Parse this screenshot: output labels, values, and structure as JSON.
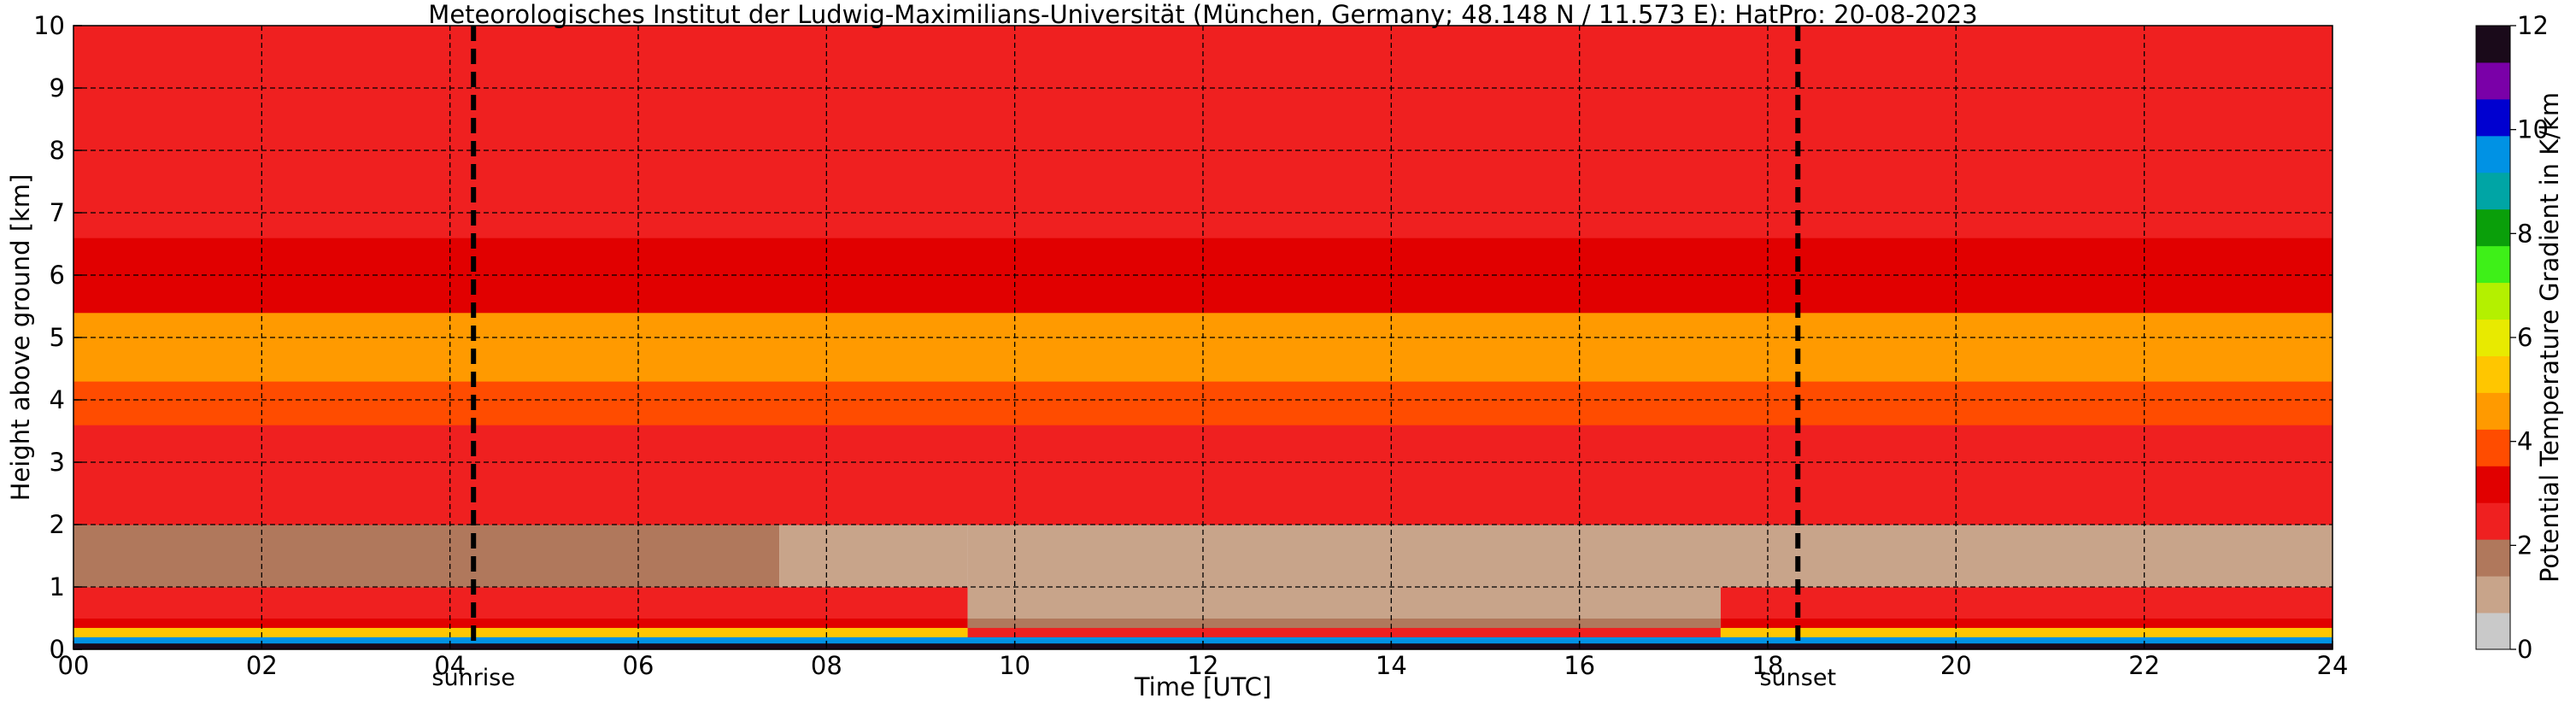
{
  "chart_data": {
    "type": "heatmap",
    "title": "Meteorologisches Institut der Ludwig-Maximilians-Universität (München, Germany; 48.148 N / 11.573 E):    HatPro: 20-08-2023",
    "xlabel": "Time [UTC]",
    "ylabel": "Height above ground [km]",
    "xlim": [
      0,
      24
    ],
    "ylim": [
      0,
      10
    ],
    "x_ticks": [
      "00",
      "02",
      "04",
      "06",
      "08",
      "10",
      "12",
      "14",
      "16",
      "18",
      "20",
      "22",
      "24"
    ],
    "y_ticks": [
      "0",
      "1",
      "2",
      "3",
      "4",
      "5",
      "6",
      "7",
      "8",
      "9",
      "10"
    ],
    "grid": true,
    "colorbar": {
      "label": "Potential Temperature Gradient in K/km",
      "range": [
        0,
        12
      ],
      "ticks": [
        "0",
        "2",
        "4",
        "6",
        "8",
        "10",
        "12"
      ],
      "colors": [
        "#c9c9c9",
        "#c8a48a",
        "#b0785c",
        "#ef2020",
        "#e10000",
        "#ff4c00",
        "#ff9a00",
        "#ffc600",
        "#e8ea00",
        "#b4f000",
        "#3ef018",
        "#0a9f0a",
        "#00a5a5",
        "#0092e4",
        "#0000d0",
        "#7a00a8",
        "#1a0a1a"
      ]
    },
    "events": [
      {
        "label": "sunrise",
        "time": 4.25
      },
      {
        "label": "sunset",
        "time": 18.32
      }
    ],
    "layers": [
      {
        "h_from": 0.0,
        "h_to": 0.1,
        "value": 12,
        "time_from": 0,
        "time_to": 24
      },
      {
        "h_from": 0.1,
        "h_to": 0.2,
        "value": 9.5,
        "time_from": 0,
        "time_to": 24
      },
      {
        "h_from": 0.2,
        "h_to": 0.35,
        "value": 5,
        "time_from": 0,
        "time_to": 9.5
      },
      {
        "h_from": 0.2,
        "h_to": 0.35,
        "value": 2.5,
        "time_from": 9.5,
        "time_to": 17.5
      },
      {
        "h_from": 0.2,
        "h_to": 0.35,
        "value": 5,
        "time_from": 17.5,
        "time_to": 24
      },
      {
        "h_from": 0.35,
        "h_to": 0.5,
        "value": 3.5,
        "time_from": 0,
        "time_to": 9.5
      },
      {
        "h_from": 0.35,
        "h_to": 0.5,
        "value": 1.5,
        "time_from": 9.5,
        "time_to": 17.5
      },
      {
        "h_from": 0.35,
        "h_to": 0.5,
        "value": 3.5,
        "time_from": 17.5,
        "time_to": 24
      },
      {
        "h_from": 0.5,
        "h_to": 1.0,
        "value": 2.6,
        "time_from": 0,
        "time_to": 9.5
      },
      {
        "h_from": 0.5,
        "h_to": 1.0,
        "value": 1.2,
        "time_from": 9.5,
        "time_to": 17.5
      },
      {
        "h_from": 0.5,
        "h_to": 1.0,
        "value": 2.4,
        "time_from": 17.5,
        "time_to": 24
      },
      {
        "h_from": 1.0,
        "h_to": 2.0,
        "value": 1.5,
        "time_from": 0,
        "time_to": 7.5
      },
      {
        "h_from": 1.0,
        "h_to": 2.0,
        "value": 1.3,
        "time_from": 7.5,
        "time_to": 9.5
      },
      {
        "h_from": 1.0,
        "h_to": 2.0,
        "value": 0.9,
        "time_from": 9.5,
        "time_to": 18.3
      },
      {
        "h_from": 1.0,
        "h_to": 2.0,
        "value": 1.2,
        "time_from": 18.3,
        "time_to": 24
      },
      {
        "h_from": 2.0,
        "h_to": 3.0,
        "value": 2.2,
        "time_from": 0,
        "time_to": 24
      },
      {
        "h_from": 3.0,
        "h_to": 3.6,
        "value": 2.8,
        "time_from": 0,
        "time_to": 24
      },
      {
        "h_from": 3.6,
        "h_to": 4.3,
        "value": 3.8,
        "time_from": 0,
        "time_to": 24
      },
      {
        "h_from": 4.3,
        "h_to": 5.4,
        "value": 4.8,
        "time_from": 0,
        "time_to": 24
      },
      {
        "h_from": 5.4,
        "h_to": 6.6,
        "value": 3.4,
        "time_from": 0,
        "time_to": 24
      },
      {
        "h_from": 6.6,
        "h_to": 7.6,
        "value": 2.8,
        "time_from": 0,
        "time_to": 24
      },
      {
        "h_from": 7.6,
        "h_to": 9.6,
        "value": 2.2,
        "time_from": 0,
        "time_to": 24
      },
      {
        "h_from": 9.6,
        "h_to": 10.0,
        "value": 2.6,
        "time_from": 0,
        "time_to": 24
      }
    ]
  }
}
